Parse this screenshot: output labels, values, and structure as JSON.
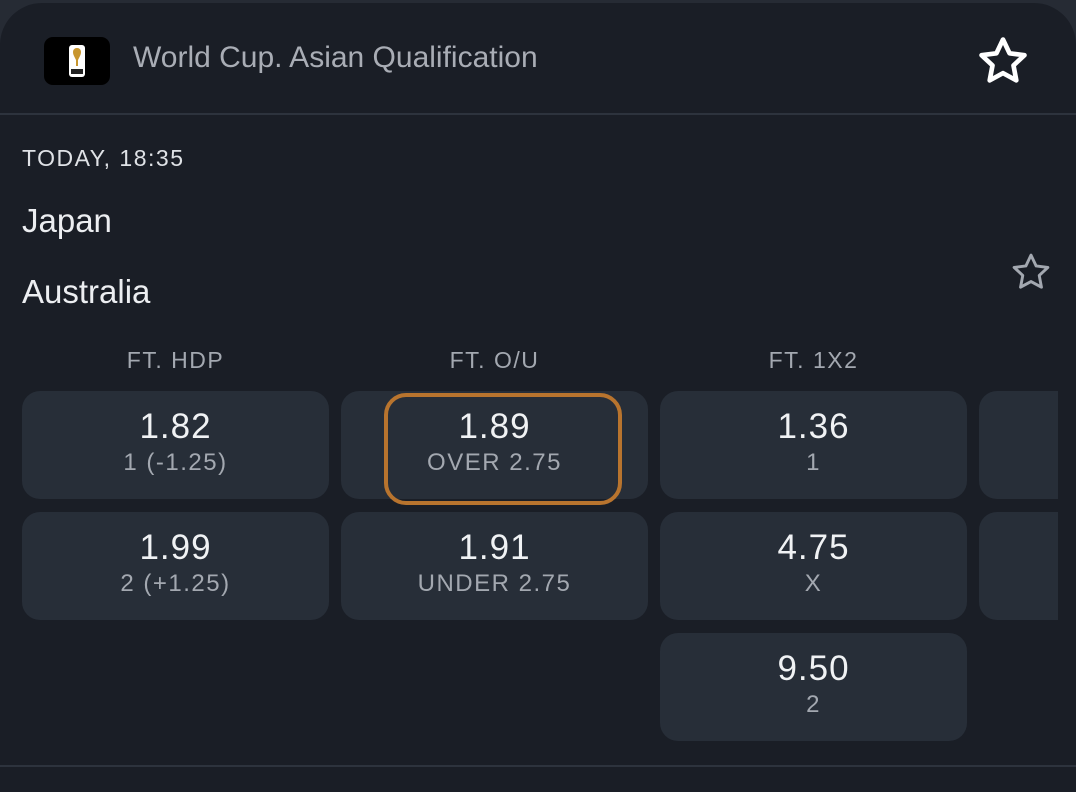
{
  "header": {
    "title": "World Cup. Asian Qualification",
    "logo": "fifa-world-cup-2026-logo",
    "favorite_icon": "star-outline-icon"
  },
  "match": {
    "time": "TODAY, 18:35",
    "home": "Japan",
    "away": "Australia",
    "favorite_icon": "star-outline-icon"
  },
  "markets": [
    {
      "label": "FT. HDP",
      "options": [
        {
          "odds": "1.82",
          "label": "1 (-1.25)"
        },
        {
          "odds": "1.99",
          "label": "2 (+1.25)"
        }
      ]
    },
    {
      "label": "FT. O/U",
      "options": [
        {
          "odds": "1.89",
          "label": "OVER 2.75",
          "highlighted": true
        },
        {
          "odds": "1.91",
          "label": "UNDER 2.75"
        }
      ]
    },
    {
      "label": "FT. 1X2",
      "options": [
        {
          "odds": "1.36",
          "label": "1"
        },
        {
          "odds": "4.75",
          "label": "X"
        },
        {
          "odds": "9.50",
          "label": "2"
        }
      ]
    }
  ],
  "colors": {
    "background": "#1a1e26",
    "cell": "#272e38",
    "highlight": "#b8742e"
  }
}
